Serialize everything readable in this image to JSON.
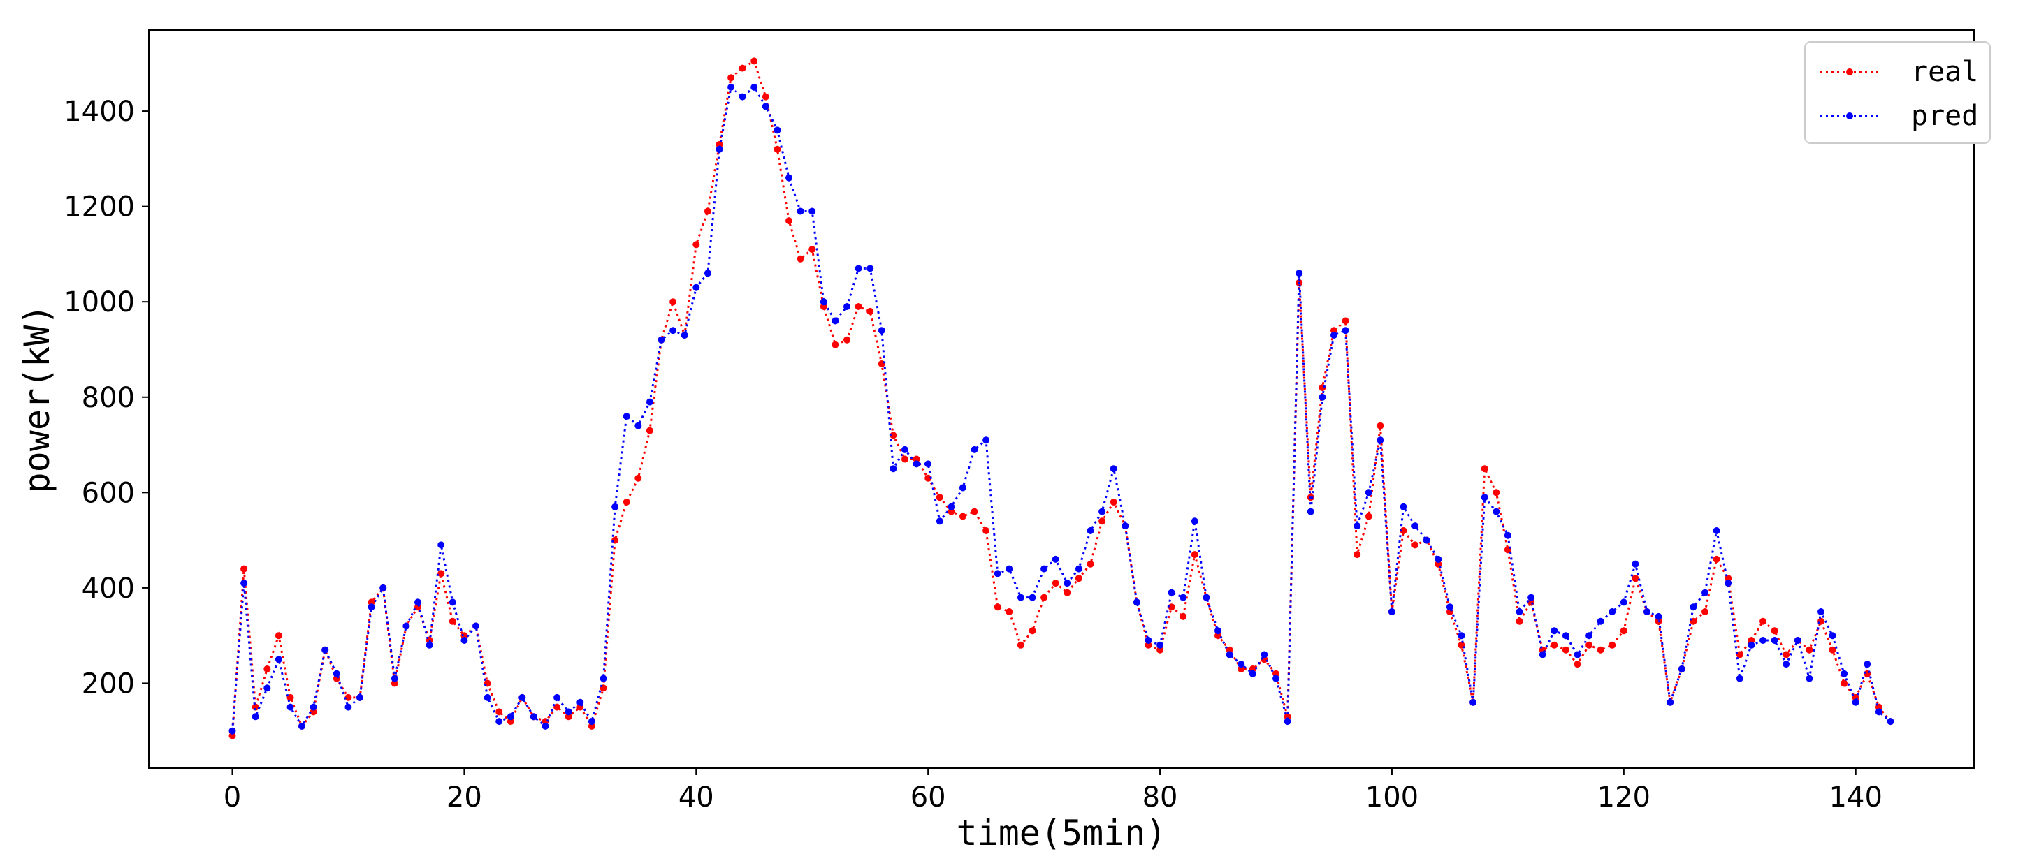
{
  "chart_data": {
    "type": "line",
    "title": "",
    "xlabel": "time(5min)",
    "ylabel": "power(kW)",
    "xlim": [
      -7.2,
      150.2
    ],
    "ylim": [
      22,
      1570
    ],
    "xticks": [
      0,
      20,
      40,
      60,
      80,
      100,
      120,
      140
    ],
    "yticks": [
      200,
      400,
      600,
      800,
      1000,
      1200,
      1400
    ],
    "grid": false,
    "legend_position": "top-right",
    "x": [
      0,
      1,
      2,
      3,
      4,
      5,
      6,
      7,
      8,
      9,
      10,
      11,
      12,
      13,
      14,
      15,
      16,
      17,
      18,
      19,
      20,
      21,
      22,
      23,
      24,
      25,
      26,
      27,
      28,
      29,
      30,
      31,
      32,
      33,
      34,
      35,
      36,
      37,
      38,
      39,
      40,
      41,
      42,
      43,
      44,
      45,
      46,
      47,
      48,
      49,
      50,
      51,
      52,
      53,
      54,
      55,
      56,
      57,
      58,
      59,
      60,
      61,
      62,
      63,
      64,
      65,
      66,
      67,
      68,
      69,
      70,
      71,
      72,
      73,
      74,
      75,
      76,
      77,
      78,
      79,
      80,
      81,
      82,
      83,
      84,
      85,
      86,
      87,
      88,
      89,
      90,
      91,
      92,
      93,
      94,
      95,
      96,
      97,
      98,
      99,
      100,
      101,
      102,
      103,
      104,
      105,
      106,
      107,
      108,
      109,
      110,
      111,
      112,
      113,
      114,
      115,
      116,
      117,
      118,
      119,
      120,
      121,
      122,
      123,
      124,
      125,
      126,
      127,
      128,
      129,
      130,
      131,
      132,
      133,
      134,
      135,
      136,
      137,
      138,
      139,
      140,
      141,
      142,
      143
    ],
    "series": [
      {
        "name": "real",
        "color": "#ff0000",
        "values": [
          90,
          440,
          150,
          230,
          300,
          170,
          110,
          140,
          270,
          210,
          170,
          170,
          370,
          400,
          200,
          320,
          360,
          290,
          430,
          330,
          300,
          320,
          200,
          140,
          120,
          170,
          130,
          120,
          150,
          130,
          150,
          110,
          190,
          500,
          580,
          630,
          730,
          920,
          1000,
          930,
          1120,
          1190,
          1330,
          1470,
          1490,
          1505,
          1430,
          1320,
          1170,
          1090,
          1110,
          990,
          910,
          920,
          990,
          980,
          870,
          720,
          670,
          670,
          630,
          590,
          560,
          550,
          560,
          520,
          360,
          350,
          280,
          310,
          380,
          410,
          390,
          420,
          450,
          540,
          580,
          530,
          370,
          280,
          270,
          360,
          340,
          470,
          380,
          300,
          270,
          230,
          230,
          250,
          220,
          130,
          1040,
          590,
          820,
          940,
          960,
          470,
          550,
          740,
          350,
          520,
          490,
          500,
          450,
          350,
          280,
          160,
          650,
          600,
          480,
          330,
          370,
          270,
          280,
          270,
          240,
          280,
          270,
          280,
          310,
          420,
          350,
          330,
          160,
          230,
          330,
          350,
          460,
          420,
          260,
          290,
          330,
          310,
          260,
          290,
          270,
          330,
          270,
          200,
          170,
          220,
          150,
          120
        ]
      },
      {
        "name": "pred",
        "color": "#0000ff",
        "values": [
          100,
          410,
          130,
          190,
          250,
          150,
          110,
          150,
          270,
          220,
          150,
          170,
          360,
          400,
          210,
          320,
          370,
          280,
          490,
          370,
          290,
          320,
          170,
          120,
          130,
          170,
          130,
          110,
          170,
          140,
          160,
          120,
          210,
          570,
          760,
          740,
          790,
          920,
          940,
          930,
          1030,
          1060,
          1320,
          1450,
          1430,
          1450,
          1410,
          1360,
          1260,
          1190,
          1190,
          1000,
          960,
          990,
          1070,
          1070,
          940,
          650,
          690,
          660,
          660,
          540,
          570,
          610,
          690,
          710,
          430,
          440,
          380,
          380,
          440,
          460,
          410,
          440,
          520,
          560,
          650,
          530,
          370,
          290,
          280,
          390,
          380,
          540,
          380,
          310,
          260,
          240,
          220,
          260,
          210,
          120,
          1060,
          560,
          800,
          930,
          940,
          530,
          600,
          710,
          350,
          570,
          530,
          500,
          460,
          360,
          300,
          160,
          590,
          560,
          510,
          350,
          380,
          260,
          310,
          300,
          260,
          300,
          330,
          350,
          370,
          450,
          350,
          340,
          160,
          230,
          360,
          390,
          520,
          410,
          210,
          280,
          290,
          290,
          240,
          290,
          210,
          350,
          300,
          220,
          160,
          240,
          140,
          120
        ]
      }
    ]
  }
}
